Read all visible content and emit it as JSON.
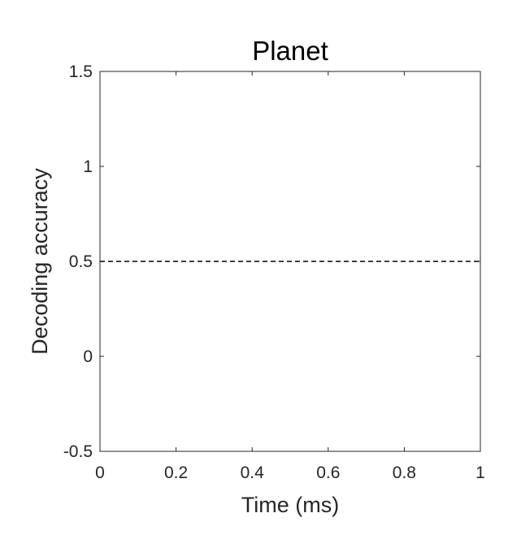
{
  "chart_data": {
    "type": "line",
    "title": "Planet",
    "xlabel": "Time (ms)",
    "ylabel": "Decoding accuracy",
    "xlim": [
      0,
      1
    ],
    "ylim": [
      -0.5,
      1.5
    ],
    "x_ticks": [
      0,
      0.2,
      0.4,
      0.6,
      0.8,
      1
    ],
    "x_tick_labels": [
      "0",
      "0.2",
      "0.4",
      "0.6",
      "0.8",
      "1"
    ],
    "y_ticks": [
      -0.5,
      0,
      0.5,
      1,
      1.5
    ],
    "y_tick_labels": [
      "-0.5",
      "0",
      "0.5",
      "1",
      "1.5"
    ],
    "grid": false,
    "reference_lines": [
      {
        "orientation": "horizontal",
        "y": 0.5,
        "style": "dashed",
        "color": "#000000"
      }
    ],
    "series": []
  }
}
